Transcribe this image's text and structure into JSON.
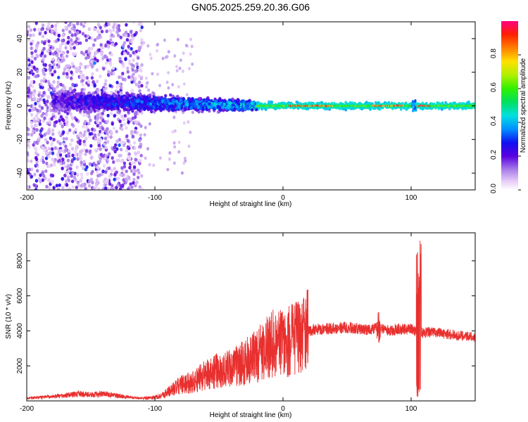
{
  "title": "GN05.2025.259.20.36.G06",
  "chart_data": [
    {
      "type": "heatmap",
      "xlabel": "Height of straight line (km)",
      "ylabel": "Frequency (Hz)",
      "xlim": [
        -200,
        150
      ],
      "ylim": [
        -50,
        50
      ],
      "x_ticks": [
        -200,
        -100,
        0,
        100
      ],
      "y_ticks": [
        -40,
        -20,
        0,
        20,
        40
      ],
      "colorbar": {
        "label": "Normalized spectral amplitude",
        "range": [
          0.0,
          1.0
        ],
        "ticks": [
          0.0,
          0.2,
          0.4,
          0.6,
          0.8
        ],
        "tick_labels": [
          "0.0",
          "0.2",
          "0.4",
          "0.6",
          "0.8"
        ]
      },
      "bands": [
        {
          "x_start": -200,
          "x_end": -110,
          "center_hz": 0,
          "halfwidth_hz": 50,
          "peak_amplitude": 0.3,
          "description": "sparse scatter"
        },
        {
          "x_start": -180,
          "x_end": -20,
          "center_hz": 3,
          "halfwidth_hz": 10,
          "peak_amplitude": 0.5
        },
        {
          "x_start": -20,
          "x_end": 150,
          "center_hz": 0,
          "halfwidth_hz": 3,
          "peak_amplitude": 0.9
        }
      ]
    },
    {
      "type": "line",
      "xlabel": "Height of straight line (km)",
      "ylabel": "SNR (10 * v/v)",
      "xlim": [
        -200,
        150
      ],
      "ylim": [
        0,
        9600
      ],
      "x_ticks": [
        -200,
        -100,
        0,
        100
      ],
      "y_ticks": [
        2000,
        4000,
        6000,
        8000
      ],
      "series": [
        {
          "name": "SNR",
          "color": "#e8302f",
          "x": [
            -200,
            -190,
            -180,
            -170,
            -160,
            -150,
            -140,
            -130,
            -120,
            -110,
            -100,
            -95,
            -90,
            -85,
            -80,
            -75,
            -70,
            -65,
            -60,
            -55,
            -50,
            -45,
            -40,
            -35,
            -30,
            -25,
            -20,
            -15,
            -10,
            -5,
            0,
            5,
            10,
            15,
            20,
            25,
            30,
            40,
            50,
            60,
            70,
            75,
            80,
            90,
            100,
            104,
            106,
            108,
            110,
            120,
            130,
            140,
            150
          ],
          "values": [
            150,
            200,
            250,
            300,
            400,
            350,
            400,
            300,
            200,
            150,
            200,
            300,
            500,
            700,
            900,
            1000,
            1100,
            1300,
            1500,
            1700,
            1700,
            1800,
            1900,
            2000,
            2200,
            2400,
            2600,
            2900,
            3200,
            3500,
            3200,
            3400,
            3700,
            3900,
            4000,
            4100,
            4100,
            4150,
            4200,
            4100,
            4100,
            4200,
            4000,
            4100,
            4100,
            4000,
            8500,
            3900,
            3900,
            3900,
            3800,
            3700,
            3600
          ]
        }
      ]
    }
  ]
}
